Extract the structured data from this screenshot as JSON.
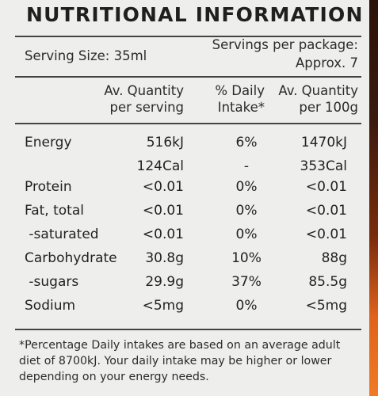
{
  "panel": {
    "title": "NUTRITIONAL INFORMATION",
    "serving_size": "Serving Size: 35ml",
    "servings_line1": "Servings per package:",
    "servings_line2": "Approx. 7"
  },
  "columns": {
    "per_serving_1": "Av. Quantity",
    "per_serving_2": "per serving",
    "daily_1": "% Daily",
    "daily_2": "Intake*",
    "per_100_1": "Av. Quantity",
    "per_100_2": "per 100g"
  },
  "rows": [
    {
      "name": "Energy",
      "serving": "516kJ",
      "daily": "6%",
      "per100": "1470kJ"
    },
    {
      "name": "",
      "serving": "124Cal",
      "daily": "-",
      "per100": "353Cal"
    },
    {
      "name": "Protein",
      "serving": "<0.01",
      "daily": "0%",
      "per100": "<0.01"
    },
    {
      "name": "Fat, total",
      "serving": "<0.01",
      "daily": "0%",
      "per100": "<0.01"
    },
    {
      "name": " -saturated",
      "serving": "<0.01",
      "daily": "0%",
      "per100": "<0.01"
    },
    {
      "name": "Carbohydrate",
      "serving": "30.8g",
      "daily": "10%",
      "per100": "88g"
    },
    {
      "name": " -sugars",
      "serving": "29.9g",
      "daily": "37%",
      "per100": "85.5g"
    },
    {
      "name": "Sodium",
      "serving": "<5mg",
      "daily": "0%",
      "per100": "<5mg"
    }
  ],
  "footnote": {
    "line1": "*Percentage Daily intakes are based on an average adult",
    "line2": "diet of 8700kJ. Your daily intake may be higher or lower",
    "line3": "depending on your energy needs."
  }
}
